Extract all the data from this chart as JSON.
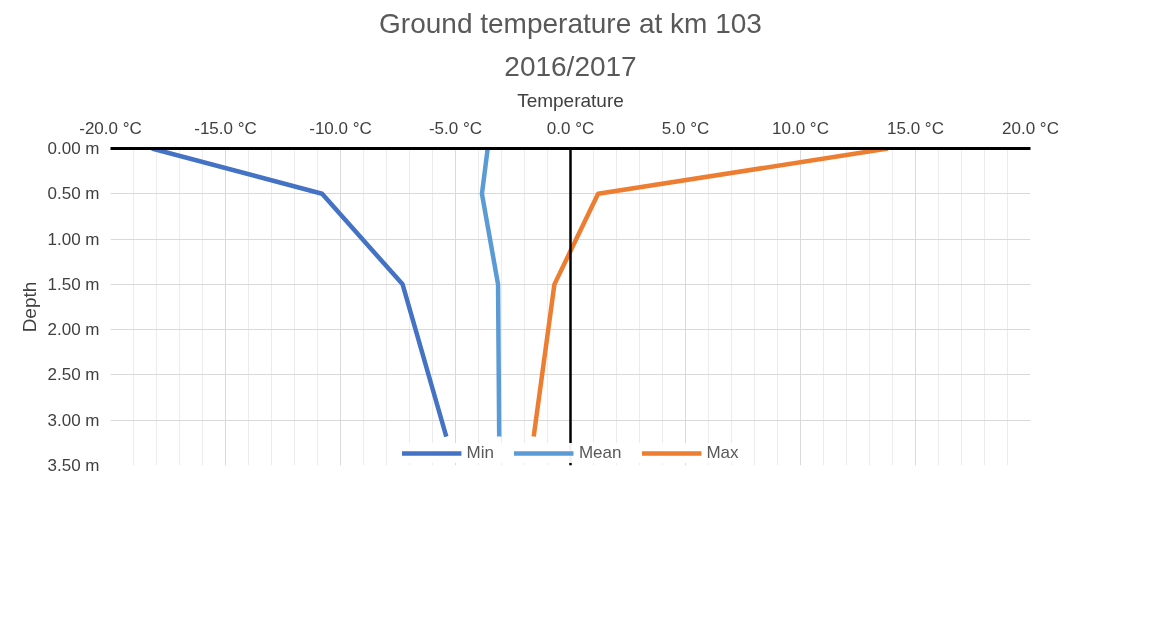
{
  "chart_data": {
    "type": "line",
    "title": "Ground temperature at km 103",
    "subtitle": "2016/2017",
    "xlabel": "Temperature",
    "ylabel": "Depth",
    "xlim": [
      -20,
      20
    ],
    "xticks": [
      {
        "value": -20,
        "label": "-20.0 °C"
      },
      {
        "value": -15,
        "label": "-15.0 °C"
      },
      {
        "value": -10,
        "label": "-10.0 °C"
      },
      {
        "value": -5,
        "label": "-5.0 °C"
      },
      {
        "value": 0,
        "label": "0.0 °C"
      },
      {
        "value": 5,
        "label": "5.0 °C"
      },
      {
        "value": 10,
        "label": "10.0 °C"
      },
      {
        "value": 15,
        "label": "15.0 °C"
      },
      {
        "value": 20,
        "label": "20.0 °C"
      }
    ],
    "ylim": [
      3.5,
      0
    ],
    "yticks": [
      {
        "value": 0,
        "label": "0.00 m"
      },
      {
        "value": 0.5,
        "label": "0.50 m"
      },
      {
        "value": 1,
        "label": "1.00 m"
      },
      {
        "value": 1.5,
        "label": "1.50 m"
      },
      {
        "value": 2,
        "label": "2.00 m"
      },
      {
        "value": 2.5,
        "label": "2.50 m"
      },
      {
        "value": 3,
        "label": "3.00 m"
      },
      {
        "value": 3.5,
        "label": "3.50 m"
      }
    ],
    "series": [
      {
        "name": "Min",
        "color": "#4472c4",
        "x": [
          -18.2,
          -10.8,
          -7.3,
          -5.4
        ],
        "values": [
          0,
          0.5,
          1.5,
          3.18
        ]
      },
      {
        "name": "Mean",
        "color": "#5b9bd5",
        "x": [
          -3.6,
          -3.85,
          -3.15,
          -3.1
        ],
        "values": [
          0,
          0.5,
          1.5,
          3.18
        ]
      },
      {
        "name": "Max",
        "color": "#ed7d31",
        "x": [
          13.8,
          1.2,
          -0.7,
          -1.6
        ],
        "values": [
          0,
          0.5,
          1.5,
          3.18
        ]
      }
    ],
    "ref_lines": [
      {
        "axis": "x",
        "value": 0,
        "color": "#000000"
      }
    ],
    "grid": true,
    "legend": "bottom",
    "marker": "none",
    "line_style": "solid"
  }
}
